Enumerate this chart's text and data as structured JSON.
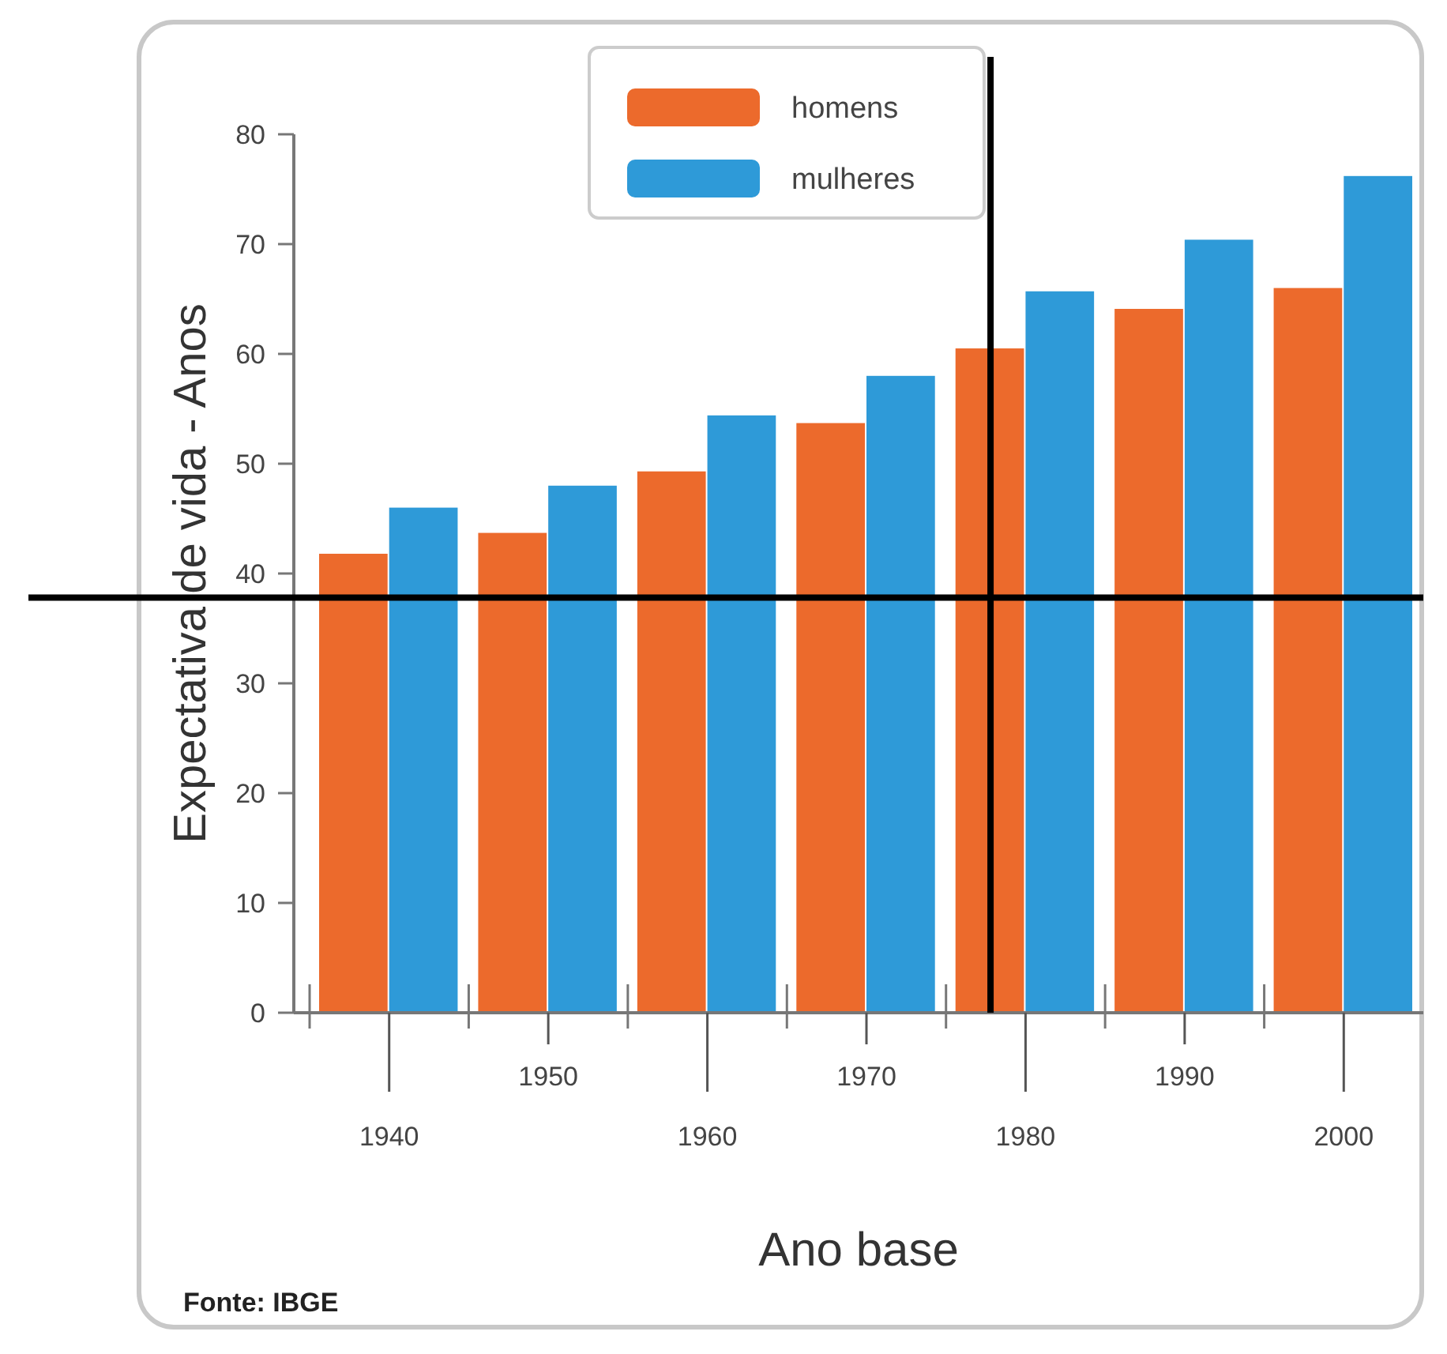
{
  "chart_data": {
    "type": "bar",
    "xlabel": "Ano base",
    "ylabel": "Expectativa de vida - Anos",
    "categories": [
      "1940",
      "1950",
      "1960",
      "1970",
      "1980",
      "1990",
      "2000"
    ],
    "series": [
      {
        "name": "homens",
        "color": "#ec6a2c",
        "values": [
          41.8,
          43.7,
          49.3,
          53.7,
          60.5,
          64.1,
          66.0
        ]
      },
      {
        "name": "mulheres",
        "color": "#2e9ad8",
        "values": [
          46.0,
          48.0,
          54.4,
          58.0,
          65.7,
          70.4,
          76.2
        ]
      }
    ],
    "ylim": [
      0,
      80
    ],
    "yticks": [
      0,
      10,
      20,
      30,
      40,
      50,
      60,
      70,
      80
    ],
    "grid": false,
    "legend": "top",
    "ref_lines": [
      {
        "axis": "y",
        "value": 37.8,
        "color": "#000000"
      },
      {
        "axis": "x",
        "value": "1980",
        "color": "#000000"
      }
    ],
    "annotations": [
      "Fonte: IBGE"
    ]
  }
}
